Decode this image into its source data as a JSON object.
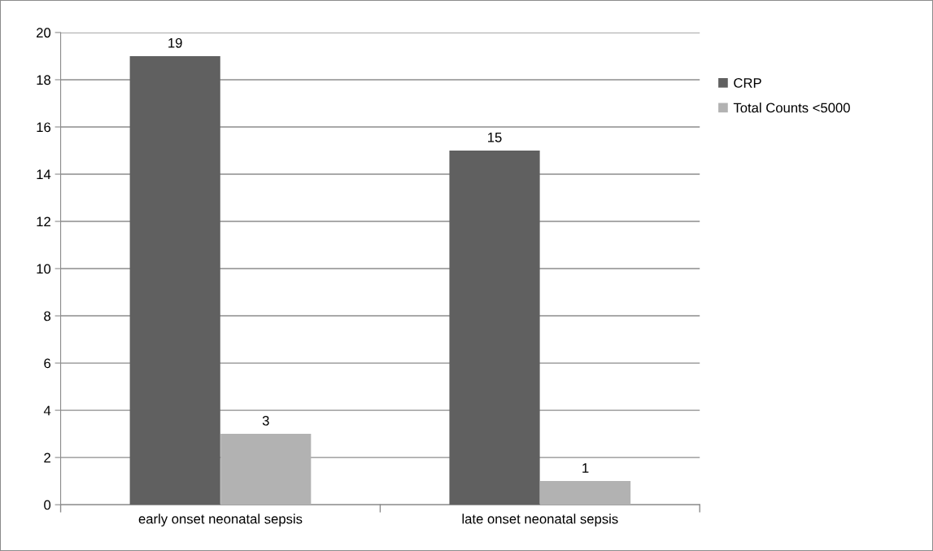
{
  "chart_data": {
    "type": "bar",
    "categories": [
      "early onset neonatal sepsis",
      "late onset neonatal sepsis"
    ],
    "series": [
      {
        "name": "CRP",
        "color": "#606060",
        "values": [
          19,
          15
        ]
      },
      {
        "name": "Total Counts <5000",
        "color": "#b2b2b2",
        "values": [
          3,
          1
        ]
      }
    ],
    "ylim": [
      0,
      20
    ],
    "yticks": [
      0,
      2,
      4,
      6,
      8,
      10,
      12,
      14,
      16,
      18,
      20
    ],
    "grid": "y",
    "legend": "top right",
    "data_labels": true
  }
}
